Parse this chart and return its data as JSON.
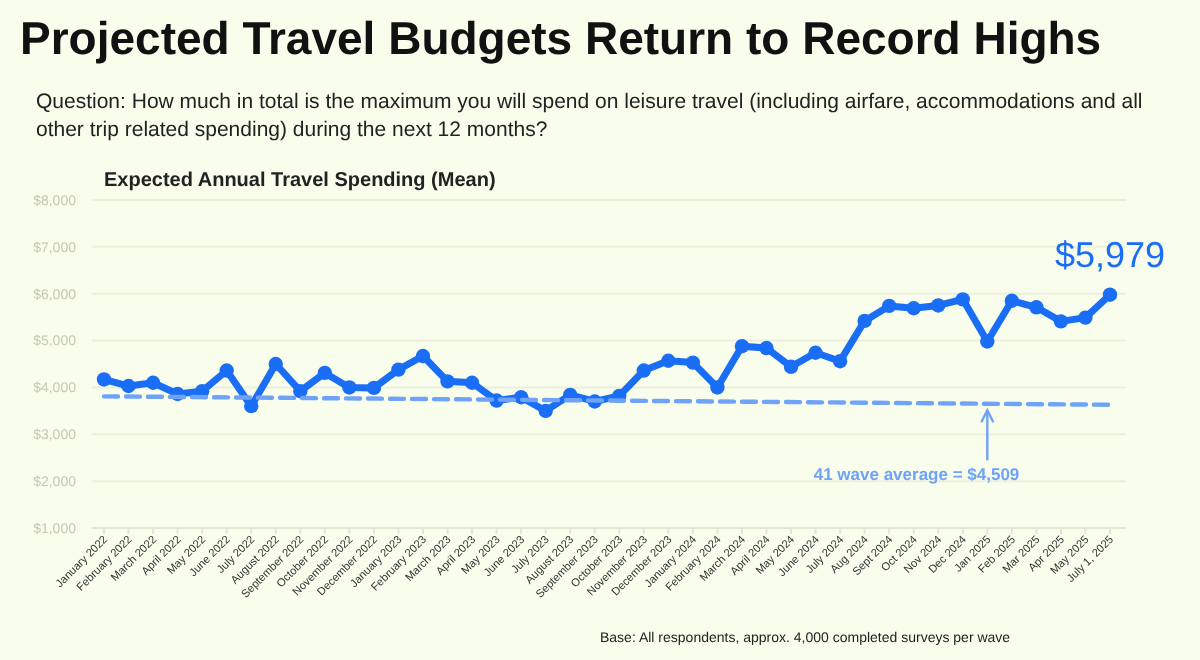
{
  "chart_data": {
    "type": "line",
    "title": "Projected Travel Budgets Return to Record Highs",
    "subtitle": "Question: How much in total is the maximum you will spend on leisure travel (including airfare, accommodations and all other trip related spending) during the next 12 months?",
    "ylabel": "Expected Annual Travel Spending (Mean)",
    "categories": [
      "January 2022",
      "February 2022",
      "March 2022",
      "April 2022",
      "May 2022",
      "June 2022",
      "July 2022",
      "August 2022",
      "September 2022",
      "October 2022",
      "November 2022",
      "December 2022",
      "January 2023",
      "February 2023",
      "March 2023",
      "April 2023",
      "May 2023",
      "June 2023",
      "July 2023",
      "August 2023",
      "September 2023",
      "October 2023",
      "November 2023",
      "December 2023",
      "January 2024",
      "February 2024",
      "March 2024",
      "April 2024",
      "May 2024",
      "June 2024",
      "July 2024",
      "Aug 2024",
      "Sept 2024",
      "Oct 2024",
      "Nov 2024",
      "Dec 2024",
      "Jan 2025",
      "Feb 2025",
      "Mar 2025",
      "Apr 2025",
      "May 2025",
      "July 1, 2025"
    ],
    "series": [
      {
        "color": "#1a6ef5",
        "marker": "circle",
        "line_style": "solid",
        "values": [
          4170,
          4030,
          4100,
          3860,
          3920,
          4360,
          3600,
          4500,
          3920,
          4310,
          4000,
          3990,
          4380,
          4670,
          4130,
          4100,
          3720,
          3790,
          3500,
          3840,
          3700,
          3820,
          4360,
          4570,
          4530,
          4000,
          4880,
          4840,
          4440,
          4740,
          4560,
          5420,
          5740,
          5690,
          5750,
          5880,
          4980,
          5850,
          5710,
          5410,
          5490,
          5979
        ],
        "value_labels": [
          null,
          null,
          null,
          null,
          null,
          null,
          null,
          null,
          null,
          null,
          null,
          null,
          null,
          null,
          null,
          null,
          null,
          null,
          null,
          null,
          null,
          null,
          null,
          null,
          null,
          null,
          null,
          null,
          null,
          null,
          null,
          null,
          null,
          null,
          null,
          null,
          null,
          null,
          null,
          null,
          null,
          "$5,979"
        ]
      },
      {
        "color": "#6fa3f7",
        "marker": "none",
        "line_style": "dashed",
        "x": [
          "January 2022",
          "July 1, 2025"
        ],
        "values": [
          3810,
          3630
        ]
      }
    ],
    "ylim": [
      1000,
      8000
    ],
    "yticks": [
      {
        "value": 1000,
        "label": "$1,000"
      },
      {
        "value": 2000,
        "label": "$2,000"
      },
      {
        "value": 3000,
        "label": "$3,000"
      },
      {
        "value": 4000,
        "label": "$4,000"
      },
      {
        "value": 5000,
        "label": "$5,000"
      },
      {
        "value": 6000,
        "label": "$6,000"
      },
      {
        "value": 7000,
        "label": "$7,000"
      },
      {
        "value": 8000,
        "label": "$8,000"
      }
    ],
    "grid": "y",
    "annotations": [
      {
        "text": "41 wave average = $4,509",
        "x": "Jan 2025",
        "y": 3640
      },
      "Base: All respondents, approx. 4,000 completed surveys per wave"
    ]
  }
}
